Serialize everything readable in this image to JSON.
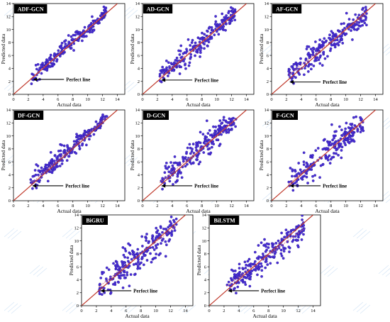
{
  "figure": {
    "colors": {
      "point_fill": "#4a2fd6",
      "point_stroke": "#1c0f8a",
      "perfect_line": "#c0392b",
      "trend_line": "#e06060",
      "title_box": "#000000",
      "title_text": "#ffffff",
      "watermark": "#b8d4f0"
    }
  },
  "chart_data": [
    {
      "type": "scatter",
      "title": "ADF-GCN",
      "xlabel": "Actual data",
      "ylabel": "Predicted data",
      "xlim": [
        0,
        15
      ],
      "ylim": [
        0,
        14
      ],
      "xticks": [
        "0",
        "2",
        "4",
        "6",
        "8",
        "10",
        "12",
        "14"
      ],
      "yticks": [
        "0",
        "2",
        "4",
        "6",
        "8",
        "10",
        "12",
        "14"
      ],
      "annotation": "Perfect line",
      "annotation_point": [
        2.6,
        2.3
      ],
      "grid": false,
      "cloud": {
        "x_range": [
          2.3,
          12.5
        ],
        "slope": 1.0,
        "intercept": 0.1,
        "spread": 0.55,
        "count": 220
      }
    },
    {
      "type": "scatter",
      "title": "AD-GCN",
      "xlabel": "Actual data",
      "ylabel": "Predicted data",
      "xlim": [
        0,
        15
      ],
      "ylim": [
        0,
        14
      ],
      "xticks": [
        "0",
        "2",
        "4",
        "6",
        "8",
        "10",
        "12",
        "14"
      ],
      "yticks": [
        "0",
        "2",
        "4",
        "6",
        "8",
        "10",
        "12",
        "14"
      ],
      "annotation": "Perfect line",
      "annotation_point": [
        2.5,
        2.2
      ],
      "grid": false,
      "cloud": {
        "x_range": [
          2.3,
          12.5
        ],
        "slope": 0.98,
        "intercept": 0.3,
        "spread": 0.75,
        "count": 220
      }
    },
    {
      "type": "scatter",
      "title": "AF-GCN",
      "xlabel": "Actual data",
      "ylabel": "Predicted data",
      "xlim": [
        0,
        15
      ],
      "ylim": [
        0,
        14
      ],
      "xticks": [
        "0",
        "2",
        "4",
        "6",
        "8",
        "10",
        "12",
        "14"
      ],
      "yticks": [
        "0",
        "2",
        "4",
        "6",
        "8",
        "10",
        "12",
        "14"
      ],
      "annotation": "Perfect line",
      "annotation_point": [
        2.4,
        1.9
      ],
      "grid": false,
      "cloud": {
        "x_range": [
          2.3,
          12.8
        ],
        "slope": 0.9,
        "intercept": 0.9,
        "spread": 1.0,
        "count": 220
      }
    },
    {
      "type": "scatter",
      "title": "DF-GCN",
      "xlabel": "Actual data",
      "ylabel": "Predicted data",
      "xlim": [
        0,
        15
      ],
      "ylim": [
        0,
        14
      ],
      "xticks": [
        "0",
        "2",
        "4",
        "6",
        "8",
        "10",
        "12",
        "14"
      ],
      "yticks": [
        "0",
        "2",
        "4",
        "6",
        "8",
        "10",
        "12",
        "14"
      ],
      "annotation": "Perfect line",
      "annotation_point": [
        2.5,
        2.3
      ],
      "grid": false,
      "cloud": {
        "x_range": [
          2.3,
          12.6
        ],
        "slope": 1.0,
        "intercept": 0.3,
        "spread": 0.7,
        "count": 220
      }
    },
    {
      "type": "scatter",
      "title": "D-GCN",
      "xlabel": "Actual data",
      "ylabel": "Predicted data",
      "xlim": [
        0,
        15
      ],
      "ylim": [
        0,
        14
      ],
      "xticks": [
        "0",
        "2",
        "4",
        "6",
        "8",
        "10",
        "12",
        "14"
      ],
      "yticks": [
        "0",
        "2",
        "4",
        "6",
        "8",
        "10",
        "12",
        "14"
      ],
      "annotation": "Perfect line",
      "annotation_point": [
        2.5,
        2.3
      ],
      "grid": false,
      "cloud": {
        "x_range": [
          2.3,
          12.6
        ],
        "slope": 0.95,
        "intercept": 0.6,
        "spread": 0.9,
        "count": 220
      }
    },
    {
      "type": "scatter",
      "title": "F-GCN",
      "xlabel": "Actual data",
      "ylabel": "Predicted data",
      "xlim": [
        0,
        15
      ],
      "ylim": [
        0,
        14
      ],
      "xticks": [
        "0",
        "2",
        "4",
        "6",
        "8",
        "10",
        "12",
        "14"
      ],
      "yticks": [
        "0",
        "2",
        "4",
        "6",
        "8",
        "10",
        "12",
        "14"
      ],
      "annotation": "Perfect line",
      "annotation_point": [
        2.4,
        2.3
      ],
      "grid": false,
      "cloud": {
        "x_range": [
          2.3,
          12.6
        ],
        "slope": 0.95,
        "intercept": 0.4,
        "spread": 1.1,
        "count": 220
      }
    },
    {
      "type": "scatter",
      "title": "BiGRU",
      "xlabel": "Actual data",
      "ylabel": "Predicted data",
      "xlim": [
        0,
        15
      ],
      "ylim": [
        0,
        14
      ],
      "xticks": [
        "0",
        "2",
        "4",
        "6",
        "8",
        "10",
        "12",
        "14"
      ],
      "yticks": [
        "0",
        "2",
        "4",
        "6",
        "8",
        "10",
        "12",
        "14"
      ],
      "annotation": "Perfect line",
      "annotation_point": [
        2.5,
        2.3
      ],
      "grid": false,
      "cloud": {
        "x_range": [
          2.3,
          12.8
        ],
        "slope": 0.9,
        "intercept": 0.8,
        "spread": 1.3,
        "count": 230
      }
    },
    {
      "type": "scatter",
      "title": "BiLSTM",
      "xlabel": "Actual data",
      "ylabel": "Predicted data",
      "xlim": [
        0,
        15
      ],
      "ylim": [
        0,
        14
      ],
      "xticks": [
        "0",
        "2",
        "4",
        "6",
        "8",
        "10",
        "12",
        "14"
      ],
      "yticks": [
        "0",
        "2",
        "4",
        "6",
        "8",
        "10",
        "12",
        "14"
      ],
      "annotation": "Perfect line",
      "annotation_point": [
        2.5,
        2.3
      ],
      "grid": false,
      "cloud": {
        "x_range": [
          2.3,
          12.8
        ],
        "slope": 0.85,
        "intercept": 1.0,
        "spread": 1.0,
        "count": 230
      }
    }
  ]
}
